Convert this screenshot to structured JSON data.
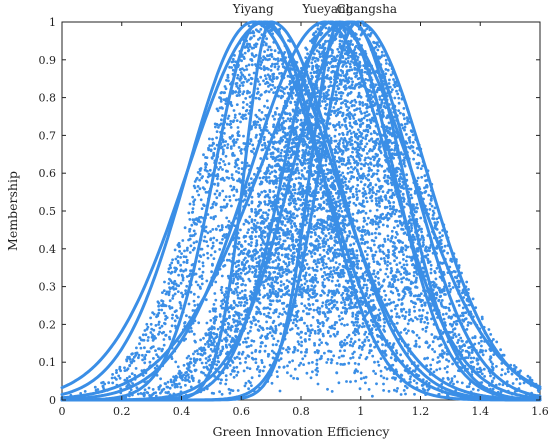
{
  "chart_data": {
    "type": "scatter",
    "title": "",
    "xlabel": "Green Innovation Efficiency",
    "ylabel": "Membership",
    "xlim": [
      0,
      1.6
    ],
    "ylim": [
      0,
      1
    ],
    "xticks": [
      "0",
      "0.2",
      "0.4",
      "0.6",
      "0.8",
      "1",
      "1.2",
      "1.4",
      "1.6"
    ],
    "yticks": [
      "0",
      "0.1",
      "0.2",
      "0.3",
      "0.4",
      "0.5",
      "0.6",
      "0.7",
      "0.8",
      "0.9",
      "1"
    ],
    "x_tick_values": [
      0,
      0.2,
      0.4,
      0.6,
      0.8,
      1.0,
      1.2,
      1.4,
      1.6
    ],
    "y_tick_values": [
      0,
      0.1,
      0.2,
      0.3,
      0.4,
      0.5,
      0.6,
      0.7,
      0.8,
      0.9,
      1.0
    ],
    "grid": false,
    "legend": "none",
    "color": "#3a8ee6",
    "annotations": [
      {
        "text": "Yiyang",
        "x": 0.64,
        "y": 1.02
      },
      {
        "text": "Yueyang",
        "x": 0.89,
        "y": 1.02
      },
      {
        "text": "Changsha",
        "x": 1.02,
        "y": 1.02
      }
    ],
    "curves": [
      {
        "center": 0.68,
        "sigma_left": 0.26,
        "sigma_right": 0.19
      },
      {
        "center": 0.64,
        "sigma_left": 0.22,
        "sigma_right": 0.23
      },
      {
        "center": 0.66,
        "sigma_left": 0.15,
        "sigma_right": 0.25
      },
      {
        "center": 0.7,
        "sigma_left": 0.09,
        "sigma_right": 0.22
      },
      {
        "center": 0.88,
        "sigma_left": 0.25,
        "sigma_right": 0.22
      },
      {
        "center": 0.9,
        "sigma_left": 0.16,
        "sigma_right": 0.27
      },
      {
        "center": 0.93,
        "sigma_left": 0.1,
        "sigma_right": 0.18
      },
      {
        "center": 0.96,
        "sigma_left": 0.3,
        "sigma_right": 0.21
      },
      {
        "center": 0.97,
        "sigma_left": 0.2,
        "sigma_right": 0.17
      },
      {
        "center": 0.99,
        "sigma_left": 0.13,
        "sigma_right": 0.23
      }
    ],
    "scatter_clouds": [
      {
        "center": 0.68,
        "sigma": 0.22,
        "count": 2600
      },
      {
        "center": 0.91,
        "sigma": 0.23,
        "count": 2400
      },
      {
        "center": 0.97,
        "sigma": 0.25,
        "count": 2600
      }
    ]
  }
}
